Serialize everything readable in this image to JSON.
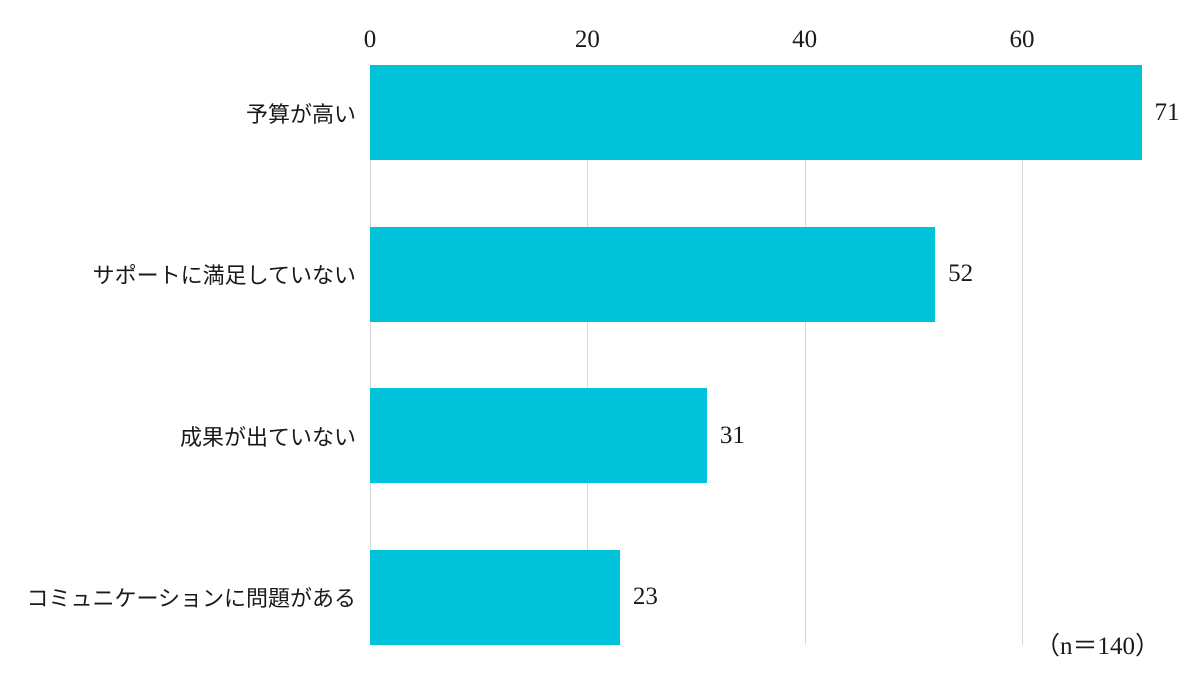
{
  "chart_data": {
    "type": "bar",
    "orientation": "horizontal",
    "title": "",
    "categories": [
      "予算が高い",
      "サポートに満足していない",
      "成果が出ていない",
      "コミュニケーションに問題がある"
    ],
    "values": [
      71,
      52,
      31,
      23
    ],
    "x_ticks": [
      0,
      20,
      40,
      60
    ],
    "xlim": [
      0,
      75
    ],
    "grid": true,
    "bar_color": "#00c2d8",
    "gridline_color": "#d9d9d9",
    "note": "（n＝140）"
  }
}
